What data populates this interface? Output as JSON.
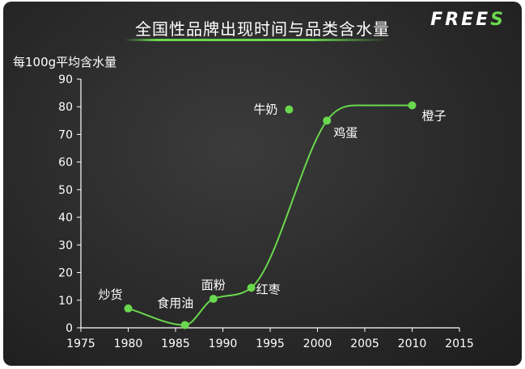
{
  "brand": {
    "text": "FREE",
    "accent_letter": "S",
    "accent_color": "#6ad84e"
  },
  "chart_data": {
    "type": "line",
    "title": "全国性品牌出现时间与品类含水量",
    "xlabel": "",
    "ylabel": "每100g平均含水量",
    "xlim": [
      1975,
      2015
    ],
    "ylim": [
      0,
      90
    ],
    "x_ticks": [
      1975,
      1980,
      1985,
      1990,
      1995,
      2000,
      2005,
      2010,
      2015
    ],
    "y_ticks": [
      0,
      10,
      20,
      30,
      40,
      50,
      60,
      70,
      80,
      90
    ],
    "grid": false,
    "line_color": "#6ad84e",
    "points": [
      {
        "label": "炒货",
        "x": 1980,
        "y": 7
      },
      {
        "label": "食用油",
        "x": 1986,
        "y": 1
      },
      {
        "label": "面粉",
        "x": 1989,
        "y": 10.5
      },
      {
        "label": "红枣",
        "x": 1993,
        "y": 14.5
      },
      {
        "label": "牛奶",
        "x": 1997,
        "y": 79
      },
      {
        "label": "鸡蛋",
        "x": 2001,
        "y": 75
      },
      {
        "label": "橙子",
        "x": 2010,
        "y": 80.5
      }
    ],
    "trend_x": [
      1980,
      1986,
      1989,
      1993,
      2001,
      2004,
      2010
    ],
    "trend_y": [
      7,
      1,
      10.5,
      14.5,
      75,
      80.5,
      80.5
    ]
  }
}
